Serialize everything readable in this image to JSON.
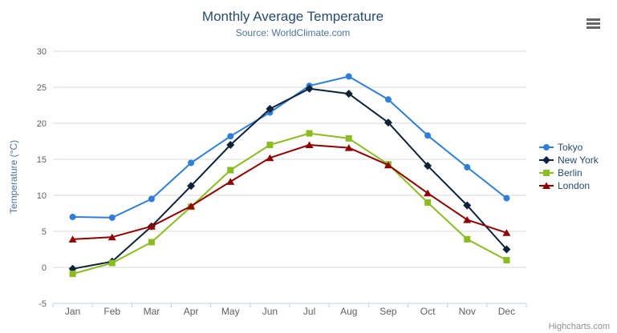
{
  "chart_data": {
    "type": "line",
    "title": "Monthly Average Temperature",
    "subtitle": "Source: WorldClimate.com",
    "xlabel": "",
    "ylabel": "Temperature (°C)",
    "ylim": [
      -5,
      30
    ],
    "ytick_interval": 5,
    "grid": true,
    "legend_position": "right",
    "categories": [
      "Jan",
      "Feb",
      "Mar",
      "Apr",
      "May",
      "Jun",
      "Jul",
      "Aug",
      "Sep",
      "Oct",
      "Nov",
      "Dec"
    ],
    "series": [
      {
        "name": "Tokyo",
        "color": "#2f7ed8",
        "marker": "circle",
        "values": [
          7.0,
          6.9,
          9.5,
          14.5,
          18.2,
          21.5,
          25.2,
          26.5,
          23.3,
          18.3,
          13.9,
          9.6
        ]
      },
      {
        "name": "New York",
        "color": "#0d233a",
        "marker": "diamond",
        "values": [
          -0.2,
          0.8,
          5.7,
          11.3,
          17.0,
          22.0,
          24.8,
          24.1,
          20.1,
          14.1,
          8.6,
          2.5
        ]
      },
      {
        "name": "Berlin",
        "color": "#8bbc21",
        "marker": "square",
        "values": [
          -0.9,
          0.6,
          3.5,
          8.4,
          13.5,
          17.0,
          18.6,
          17.9,
          14.3,
          9.0,
          3.9,
          1.0
        ]
      },
      {
        "name": "London",
        "color": "#910000",
        "marker": "triangle",
        "values": [
          3.9,
          4.2,
          5.7,
          8.5,
          11.9,
          15.2,
          17.0,
          16.6,
          14.2,
          10.3,
          6.6,
          4.8
        ]
      }
    ]
  },
  "credits": {
    "label": "Highcharts.com"
  },
  "icons": {
    "context_menu": "hamburger-icon"
  },
  "colors": {
    "title": "#274b6d",
    "subtitle": "#4d759e",
    "axis_title": "#4d759e",
    "tick_labels": "#606060",
    "gridline": "#d8d8d8",
    "axis_line": "#c0d0e0",
    "legend_text": "#274b6d",
    "credits": "#909090",
    "menu_icon": "#666666"
  }
}
